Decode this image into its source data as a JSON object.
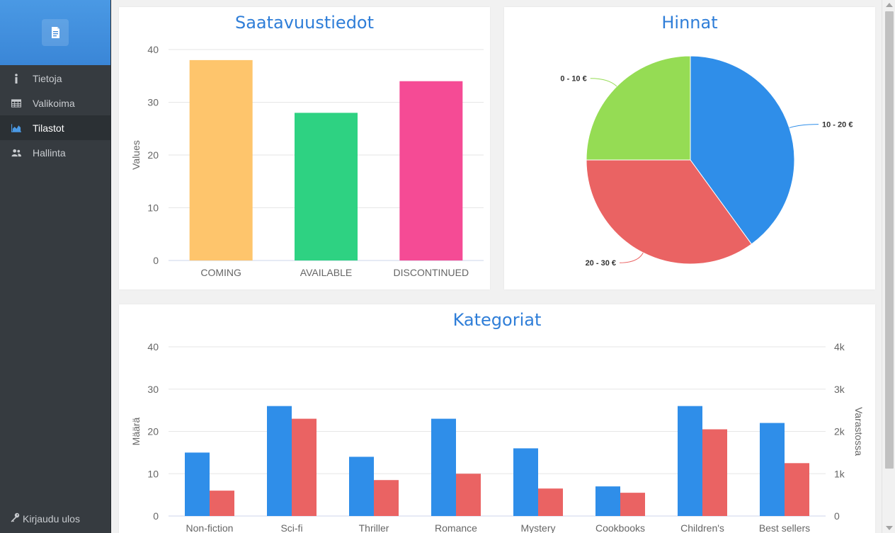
{
  "sidebar": {
    "items": [
      {
        "label": "Tietoja",
        "icon": "info-icon",
        "active": false
      },
      {
        "label": "Valikoima",
        "icon": "table-icon",
        "active": false
      },
      {
        "label": "Tilastot",
        "icon": "area-chart-icon",
        "active": true
      },
      {
        "label": "Hallinta",
        "icon": "users-icon",
        "active": false
      }
    ],
    "logout_label": "Kirjaudu ulos",
    "brand_icon": "book-icon"
  },
  "colors": {
    "accent": "#2f7ed8",
    "sidebar_bg": "#363b40",
    "brand_bg": "#4290e0"
  },
  "chart_data": [
    {
      "type": "bar",
      "title": "Saatavuustiedot",
      "categories": [
        "COMING",
        "AVAILABLE",
        "DISCONTINUED"
      ],
      "values": [
        38,
        28,
        34
      ],
      "colors": [
        "#fec56c",
        "#2ed282",
        "#f54b95"
      ],
      "ylabel": "Values",
      "xlabel": "",
      "ylim": [
        0,
        40
      ],
      "yticks": [
        "0",
        "10",
        "20",
        "30",
        "40"
      ],
      "grid": true
    },
    {
      "type": "pie",
      "title": "Hinnat",
      "slices": [
        {
          "label": "10 - 20 €",
          "value": 40,
          "color": "#2f8ee9"
        },
        {
          "label": "20 - 30 €",
          "value": 35,
          "color": "#ea6363"
        },
        {
          "label": "0 - 10 €",
          "value": 25,
          "color": "#95dc54"
        }
      ]
    },
    {
      "type": "bar",
      "title": "Kategoriat",
      "categories": [
        "Non-fiction",
        "Sci-fi",
        "Thriller",
        "Romance",
        "Mystery",
        "Cookbooks",
        "Children's",
        "Best sellers"
      ],
      "series": [
        {
          "values": [
            15,
            26,
            14,
            23,
            16,
            7,
            26,
            22
          ],
          "color": "#2f8ee9",
          "axis": "left"
        },
        {
          "values": [
            600,
            2300,
            850,
            1000,
            650,
            550,
            2050,
            1250
          ],
          "color": "#ea6363",
          "axis": "right"
        }
      ],
      "ylabel": "Määrä",
      "ylabel_right": "Varastossa",
      "ylim": [
        0,
        40
      ],
      "ylim_right": [
        0,
        4000
      ],
      "yticks": [
        "0",
        "10",
        "20",
        "30",
        "40"
      ],
      "yticks_right": [
        "0",
        "1k",
        "2k",
        "3k",
        "4k"
      ],
      "grid": true
    }
  ]
}
